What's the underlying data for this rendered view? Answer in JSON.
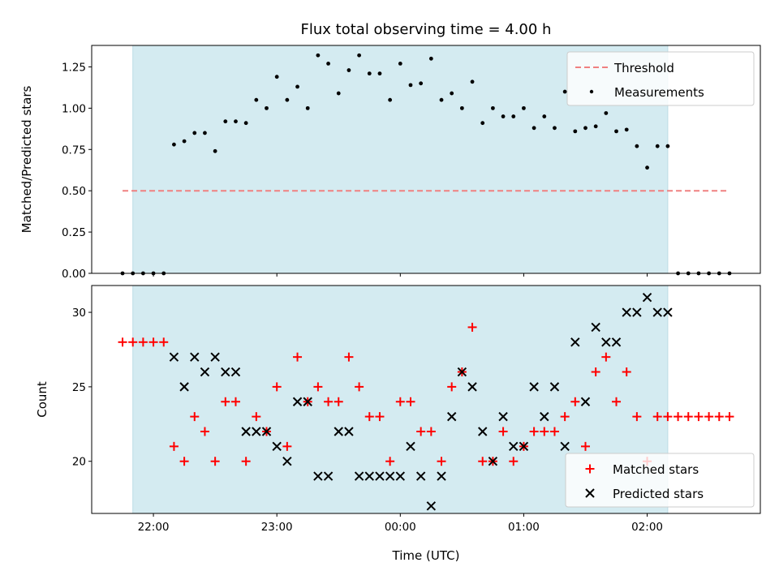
{
  "chart_data": [
    {
      "type": "scatter",
      "title": "Flux total observing time = 4.00 h",
      "ylabel": "Matched/Predicted stars",
      "xlabel": "",
      "ylim": [
        0,
        1.38
      ],
      "x_ticks": [
        "22:00",
        "23:00",
        "00:00",
        "01:00",
        "02:00"
      ],
      "y_ticks": [
        "0.00",
        "0.25",
        "0.50",
        "0.75",
        "1.00",
        "1.25"
      ],
      "shaded_span": [
        "21:50",
        "02:10"
      ],
      "shaded_color": "#d4ebf1",
      "legend_position": "top-right",
      "threshold": {
        "name": "Threshold",
        "value": 0.5,
        "x_range": [
          "21:45",
          "02:40"
        ],
        "color": "#f08080",
        "style": "dashed"
      },
      "series": [
        {
          "name": "Measurements",
          "color": "#000000",
          "x": [
            "21:45",
            "21:50",
            "21:55",
            "22:00",
            "22:05",
            "22:10",
            "22:15",
            "22:20",
            "22:25",
            "22:30",
            "22:35",
            "22:40",
            "22:45",
            "22:50",
            "22:55",
            "23:00",
            "23:05",
            "23:10",
            "23:15",
            "23:20",
            "23:25",
            "23:30",
            "23:35",
            "23:40",
            "23:45",
            "23:50",
            "23:55",
            "00:00",
            "00:05",
            "00:10",
            "00:15",
            "00:20",
            "00:25",
            "00:30",
            "00:35",
            "00:40",
            "00:45",
            "00:50",
            "00:55",
            "01:00",
            "01:05",
            "01:10",
            "01:15",
            "01:20",
            "01:25",
            "01:30",
            "01:35",
            "01:40",
            "01:45",
            "01:50",
            "01:55",
            "02:00",
            "02:05",
            "02:10",
            "02:15",
            "02:20",
            "02:25",
            "02:30",
            "02:35",
            "02:40"
          ],
          "y": [
            0,
            0,
            0,
            0,
            0,
            0.78,
            0.8,
            0.85,
            0.85,
            0.74,
            0.92,
            0.92,
            0.91,
            1.05,
            1.0,
            1.19,
            1.05,
            1.13,
            1.0,
            1.32,
            1.27,
            1.09,
            1.23,
            1.32,
            1.21,
            1.21,
            1.05,
            1.27,
            1.14,
            1.15,
            1.3,
            1.05,
            1.09,
            1.0,
            1.16,
            0.91,
            1.0,
            0.95,
            0.95,
            1.0,
            0.88,
            0.95,
            0.88,
            1.1,
            0.86,
            0.88,
            0.89,
            0.97,
            0.86,
            0.87,
            0.77,
            0.64,
            0.77,
            0.77,
            0,
            0,
            0,
            0,
            0,
            0
          ]
        }
      ]
    },
    {
      "type": "scatter",
      "title": "",
      "ylabel": "Count",
      "xlabel": "Time (UTC)",
      "xlim": [
        "21:30",
        "02:55"
      ],
      "ylim": [
        16.5,
        31.8
      ],
      "x_ticks": [
        "22:00",
        "23:00",
        "00:00",
        "01:00",
        "02:00"
      ],
      "y_ticks": [
        "20",
        "25",
        "30"
      ],
      "shaded_span": [
        "21:50",
        "02:10"
      ],
      "legend_position": "bottom-right",
      "series": [
        {
          "name": "Matched stars",
          "marker": "+",
          "color": "#ff0000",
          "x": [
            "21:45",
            "21:50",
            "21:55",
            "22:00",
            "22:05",
            "22:10",
            "22:15",
            "22:20",
            "22:25",
            "22:30",
            "22:35",
            "22:40",
            "22:45",
            "22:50",
            "22:55",
            "23:00",
            "23:05",
            "23:10",
            "23:15",
            "23:20",
            "23:25",
            "23:30",
            "23:35",
            "23:40",
            "23:45",
            "23:50",
            "23:55",
            "00:00",
            "00:05",
            "00:10",
            "00:15",
            "00:20",
            "00:25",
            "00:30",
            "00:35",
            "00:40",
            "00:45",
            "00:50",
            "00:55",
            "01:00",
            "01:05",
            "01:10",
            "01:15",
            "01:20",
            "01:25",
            "01:30",
            "01:35",
            "01:40",
            "01:45",
            "01:50",
            "01:55",
            "02:00",
            "02:05",
            "02:10",
            "02:15",
            "02:20",
            "02:25",
            "02:30",
            "02:35",
            "02:40"
          ],
          "y": [
            28,
            28,
            28,
            28,
            28,
            21,
            20,
            23,
            22,
            20,
            24,
            24,
            20,
            23,
            22,
            25,
            21,
            27,
            24,
            25,
            24,
            24,
            27,
            25,
            23,
            23,
            20,
            24,
            24,
            22,
            22,
            20,
            25,
            26,
            29,
            20,
            20,
            22,
            20,
            21,
            22,
            22,
            22,
            23,
            24,
            21,
            26,
            27,
            24,
            26,
            23,
            20,
            23,
            23,
            23,
            23,
            23,
            23,
            23,
            23
          ]
        },
        {
          "name": "Predicted stars",
          "marker": "x",
          "color": "#000000",
          "x": [
            "22:10",
            "22:15",
            "22:20",
            "22:25",
            "22:30",
            "22:35",
            "22:40",
            "22:45",
            "22:50",
            "22:55",
            "23:00",
            "23:05",
            "23:10",
            "23:15",
            "23:20",
            "23:25",
            "23:30",
            "23:35",
            "23:40",
            "23:45",
            "23:50",
            "23:55",
            "00:00",
            "00:05",
            "00:10",
            "00:15",
            "00:20",
            "00:25",
            "00:30",
            "00:35",
            "00:40",
            "00:45",
            "00:50",
            "00:55",
            "01:00",
            "01:05",
            "01:10",
            "01:15",
            "01:20",
            "01:25",
            "01:30",
            "01:35",
            "01:40",
            "01:45",
            "01:50",
            "01:55",
            "02:00",
            "02:05",
            "02:10"
          ],
          "y": [
            27,
            25,
            27,
            26,
            27,
            26,
            26,
            22,
            22,
            22,
            21,
            20,
            24,
            24,
            19,
            19,
            22,
            22,
            19,
            19,
            19,
            19,
            19,
            21,
            19,
            17,
            19,
            23,
            26,
            25,
            22,
            20,
            23,
            21,
            21,
            25,
            23,
            25,
            21,
            28,
            24,
            29,
            28,
            28,
            30,
            30,
            31,
            30,
            30
          ]
        }
      ]
    }
  ]
}
